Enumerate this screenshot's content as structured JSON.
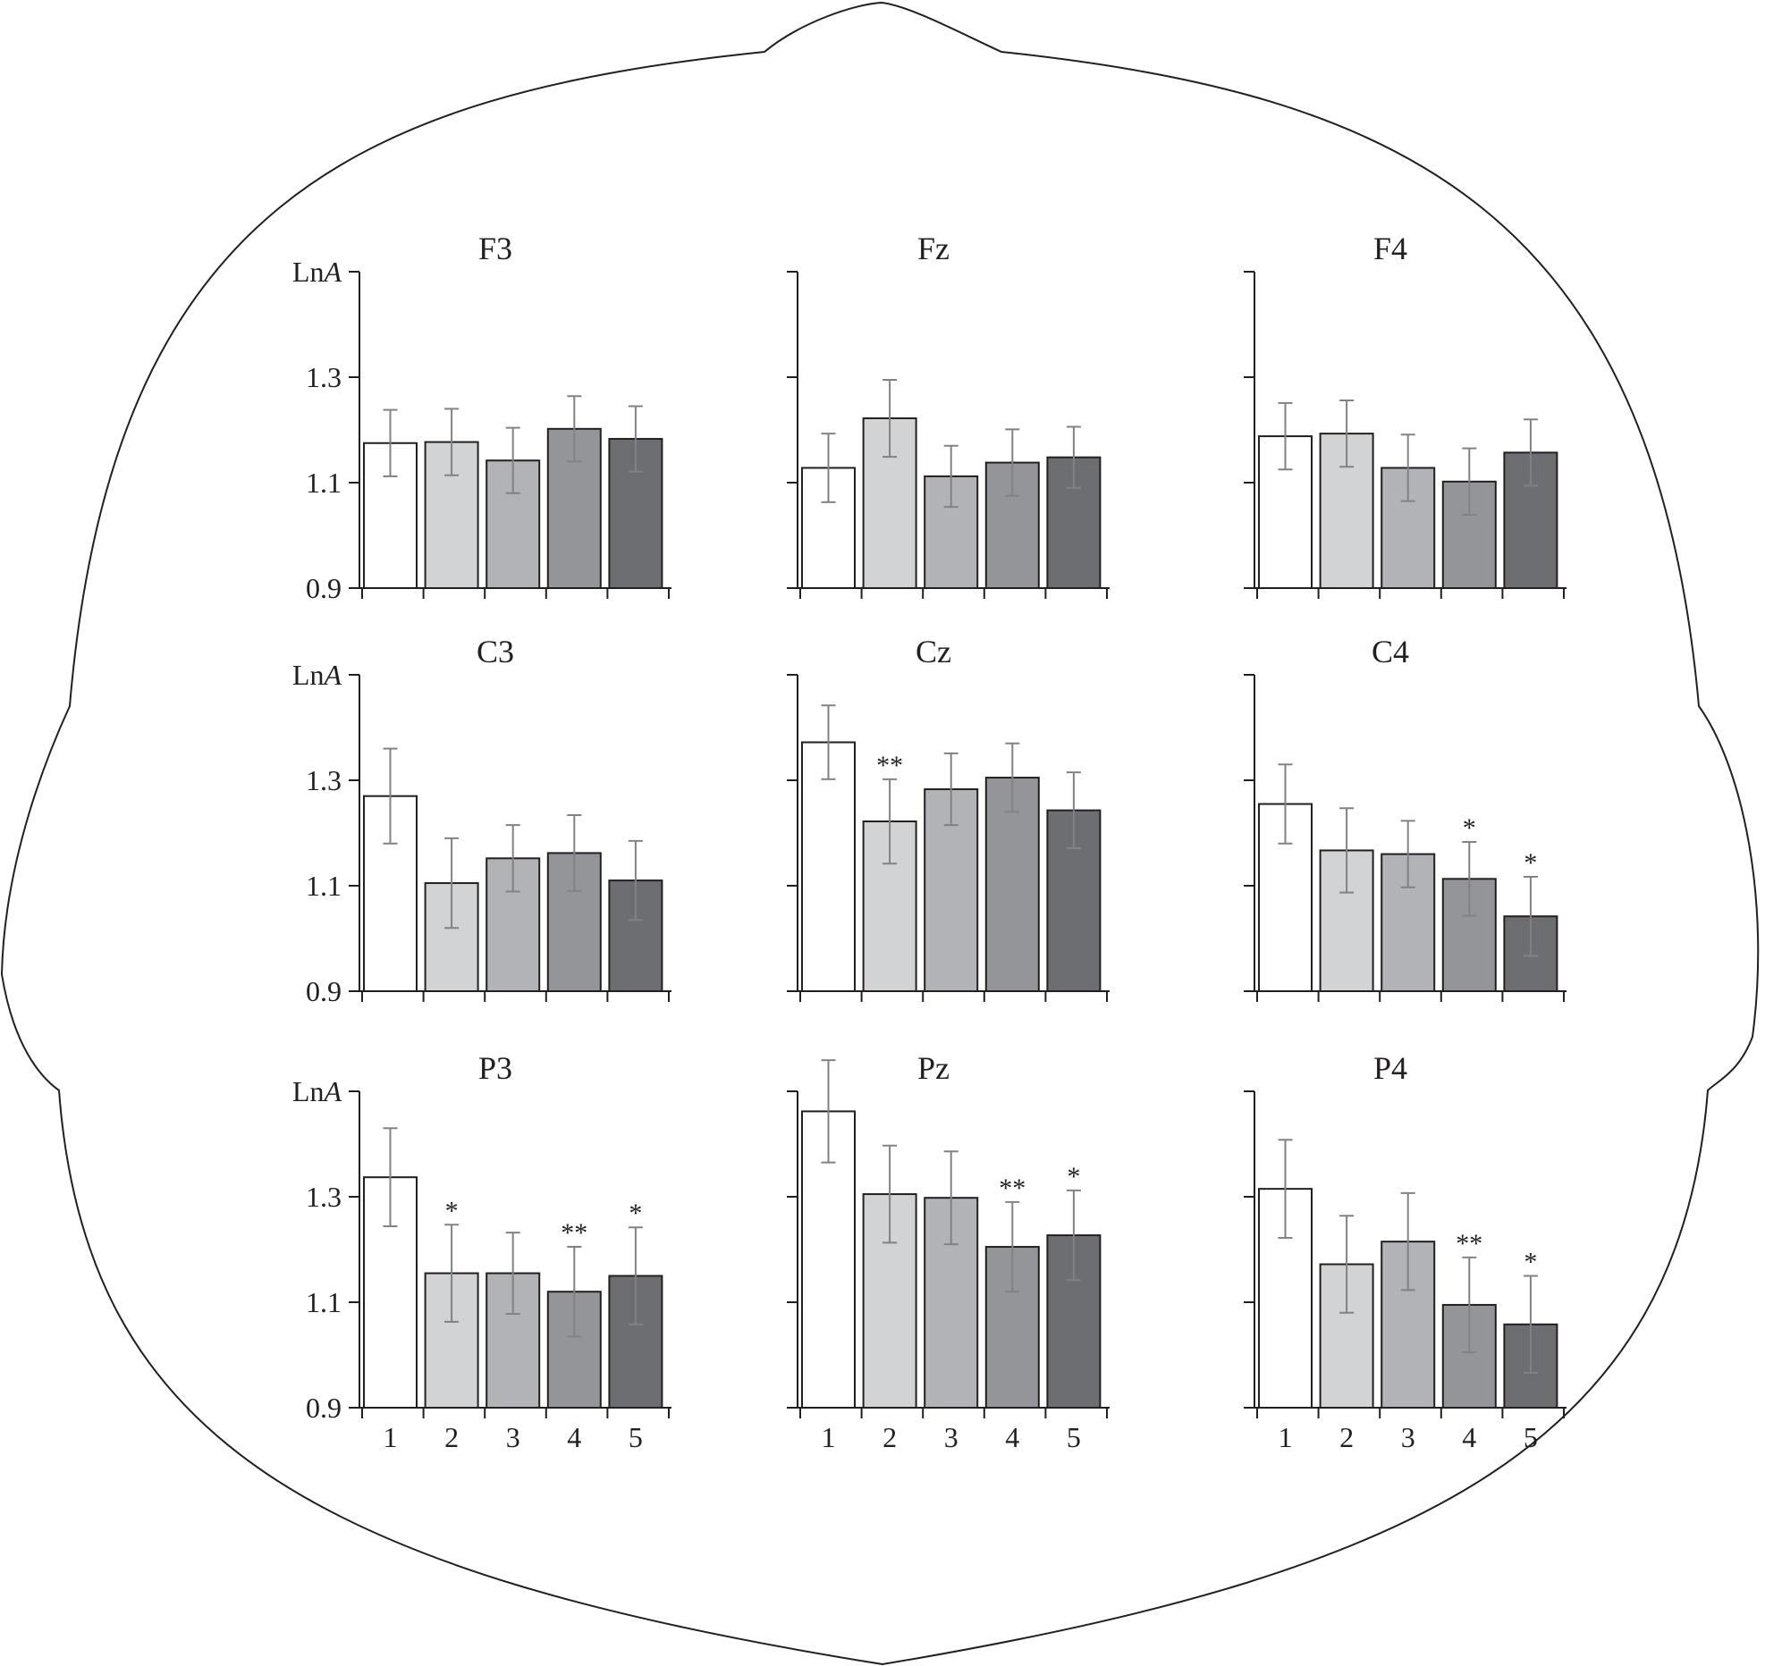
{
  "chart_data": [
    {
      "type": "bar",
      "title": "F3",
      "ylabel": "LnA",
      "ylim": [
        0.9,
        1.5
      ],
      "yticks": [
        "0.9",
        "1.1",
        "1.3"
      ],
      "categories": [
        "1",
        "2",
        "3",
        "4",
        "5"
      ],
      "values": [
        1.175,
        1.177,
        1.142,
        1.202,
        1.183
      ],
      "errors": [
        0.063,
        0.063,
        0.062,
        0.062,
        0.062
      ],
      "significance": [
        "",
        "",
        "",
        "",
        ""
      ],
      "show_xtick_labels": false
    },
    {
      "type": "bar",
      "title": "Fz",
      "ylabel": "",
      "ylim": [
        0.9,
        1.5
      ],
      "yticks": [],
      "categories": [
        "1",
        "2",
        "3",
        "4",
        "5"
      ],
      "values": [
        1.128,
        1.222,
        1.112,
        1.138,
        1.148
      ],
      "errors": [
        0.065,
        0.073,
        0.058,
        0.063,
        0.058
      ],
      "significance": [
        "",
        "",
        "",
        "",
        ""
      ],
      "show_xtick_labels": false
    },
    {
      "type": "bar",
      "title": "F4",
      "ylabel": "",
      "ylim": [
        0.9,
        1.5
      ],
      "yticks": [],
      "categories": [
        "1",
        "2",
        "3",
        "4",
        "5"
      ],
      "values": [
        1.188,
        1.193,
        1.128,
        1.102,
        1.157
      ],
      "errors": [
        0.063,
        0.063,
        0.063,
        0.063,
        0.063
      ],
      "significance": [
        "",
        "",
        "",
        "",
        ""
      ],
      "show_xtick_labels": false
    },
    {
      "type": "bar",
      "title": "C3",
      "ylabel": "LnA",
      "ylim": [
        0.9,
        1.5
      ],
      "yticks": [
        "0.9",
        "1.1",
        "1.3"
      ],
      "categories": [
        "1",
        "2",
        "3",
        "4",
        "5"
      ],
      "values": [
        1.27,
        1.105,
        1.152,
        1.162,
        1.11
      ],
      "errors": [
        0.09,
        0.085,
        0.063,
        0.072,
        0.075
      ],
      "significance": [
        "",
        "",
        "",
        "",
        ""
      ],
      "show_xtick_labels": false
    },
    {
      "type": "bar",
      "title": "Cz",
      "ylabel": "",
      "ylim": [
        0.9,
        1.5
      ],
      "yticks": [],
      "categories": [
        "1",
        "2",
        "3",
        "4",
        "5"
      ],
      "values": [
        1.372,
        1.222,
        1.283,
        1.305,
        1.243
      ],
      "errors": [
        0.07,
        0.08,
        0.068,
        0.065,
        0.072
      ],
      "significance": [
        "",
        "**",
        "",
        "",
        ""
      ],
      "show_xtick_labels": false
    },
    {
      "type": "bar",
      "title": "C4",
      "ylabel": "",
      "ylim": [
        0.9,
        1.5
      ],
      "yticks": [],
      "categories": [
        "1",
        "2",
        "3",
        "4",
        "5"
      ],
      "values": [
        1.255,
        1.167,
        1.16,
        1.113,
        1.042
      ],
      "errors": [
        0.075,
        0.08,
        0.063,
        0.07,
        0.075
      ],
      "significance": [
        "",
        "",
        "",
        "*",
        "*"
      ],
      "show_xtick_labels": false
    },
    {
      "type": "bar",
      "title": "P3",
      "ylabel": "LnA",
      "ylim": [
        0.9,
        1.5
      ],
      "yticks": [
        "0.9",
        "1.1",
        "1.3"
      ],
      "categories": [
        "1",
        "2",
        "3",
        "4",
        "5"
      ],
      "values": [
        1.337,
        1.155,
        1.155,
        1.12,
        1.15
      ],
      "errors": [
        0.093,
        0.092,
        0.077,
        0.085,
        0.092
      ],
      "significance": [
        "",
        "*",
        "",
        "**",
        "*"
      ],
      "show_xtick_labels": true
    },
    {
      "type": "bar",
      "title": "Pz",
      "ylabel": "",
      "ylim": [
        0.9,
        1.5
      ],
      "yticks": [],
      "categories": [
        "1",
        "2",
        "3",
        "4",
        "5"
      ],
      "values": [
        1.462,
        1.305,
        1.298,
        1.205,
        1.227
      ],
      "errors": [
        0.097,
        0.092,
        0.088,
        0.085,
        0.085
      ],
      "significance": [
        "",
        "",
        "",
        "**",
        "*"
      ],
      "show_xtick_labels": true
    },
    {
      "type": "bar",
      "title": "P4",
      "ylabel": "",
      "ylim": [
        0.9,
        1.5
      ],
      "yticks": [],
      "categories": [
        "1",
        "2",
        "3",
        "4",
        "5"
      ],
      "values": [
        1.315,
        1.172,
        1.215,
        1.095,
        1.058
      ],
      "errors": [
        0.093,
        0.092,
        0.092,
        0.09,
        0.092
      ],
      "significance": [
        "",
        "",
        "",
        "**",
        "*"
      ],
      "show_xtick_labels": true
    }
  ],
  "style": {
    "bar_colors": [
      "#ffffff",
      "#d1d3d4",
      "#b1b3b6",
      "#939598",
      "#6d6e71"
    ],
    "bar_stroke": "#231f20",
    "error_color": "#808285",
    "axis_color": "#231f20",
    "head_outline_color": "#231f20"
  }
}
